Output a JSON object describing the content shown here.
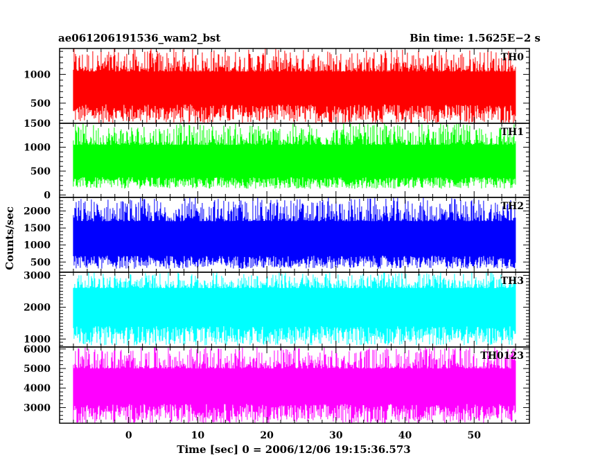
{
  "title_left": "ae061206191536_wam2_bst",
  "title_right": "Bin time: 1.5625E−2 s",
  "ylabel": "Counts/sec",
  "xlabel": "Time [sec] 0 = 2006/12/06 19:15:36.573",
  "chart_data": {
    "type": "line",
    "title": "ae061206191536_wam2_bst",
    "xlabel": "Time [sec] 0 = 2006/12/06 19:15:36.573",
    "ylabel": "Counts/sec",
    "xlim": [
      -10,
      58
    ],
    "x_ticks": [
      0,
      10,
      20,
      30,
      40,
      50
    ],
    "data_x_range": [
      -8,
      56
    ],
    "bin_time": 0.015625,
    "panels": [
      {
        "name": "TH0",
        "color": "#ff0000",
        "ylim": [
          150,
          1450
        ],
        "y_ticks": [
          500,
          1000
        ],
        "band": {
          "low": 150,
          "typical_low": 450,
          "typical_high": 1050,
          "high": 1450
        }
      },
      {
        "name": "TH1",
        "color": "#00ff00",
        "ylim": [
          -50,
          1500
        ],
        "y_ticks": [
          0,
          500,
          1000,
          1500
        ],
        "band": {
          "low": 130,
          "typical_low": 350,
          "typical_high": 1050,
          "high": 1500
        }
      },
      {
        "name": "TH2",
        "color": "#0000ff",
        "ylim": [
          200,
          2400
        ],
        "y_ticks": [
          500,
          1000,
          1500,
          2000
        ],
        "band": {
          "low": 300,
          "typical_low": 650,
          "typical_high": 1700,
          "high": 2400
        }
      },
      {
        "name": "TH3",
        "color": "#00ffff",
        "ylim": [
          750,
          3100
        ],
        "y_ticks": [
          1000,
          2000,
          3000
        ],
        "band": {
          "low": 800,
          "typical_low": 1350,
          "typical_high": 2600,
          "high": 3100
        }
      },
      {
        "name": "TH0123",
        "color": "#ff00ff",
        "ylim": [
          2200,
          6100
        ],
        "y_ticks": [
          3000,
          4000,
          5000,
          6000
        ],
        "band": {
          "low": 2200,
          "typical_low": 3100,
          "typical_high": 5000,
          "high": 6100
        }
      }
    ]
  }
}
